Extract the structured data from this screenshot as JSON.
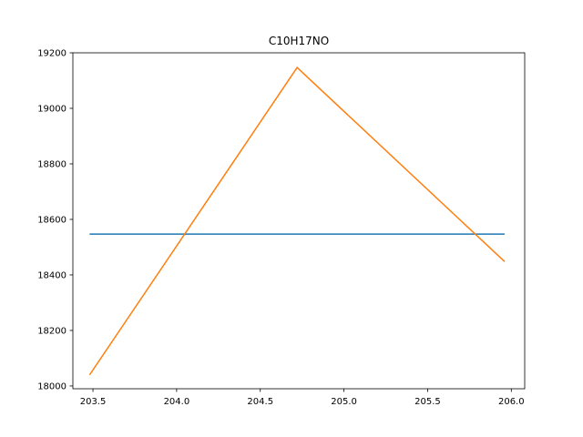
{
  "chart_data": {
    "type": "line",
    "title": "C10H17NO",
    "xlabel": "",
    "ylabel": "",
    "xlim": [
      203.38,
      206.08
    ],
    "ylim": [
      17990,
      19200
    ],
    "xticks": [
      203.5,
      204.0,
      204.5,
      205.0,
      205.5,
      206.0
    ],
    "xtick_labels": [
      "203.5",
      "204.0",
      "204.5",
      "205.0",
      "205.5",
      "206.0"
    ],
    "yticks": [
      18000,
      18200,
      18400,
      18600,
      18800,
      19000,
      19200
    ],
    "ytick_labels": [
      "18000",
      "18200",
      "18400",
      "18600",
      "18800",
      "19000",
      "19200"
    ],
    "grid": false,
    "series": [
      {
        "color": "#1f77b4",
        "x": [
          203.48,
          205.96
        ],
        "y": [
          18547,
          18547
        ]
      },
      {
        "color": "#ff7f0e",
        "x": [
          203.48,
          204.72,
          205.96
        ],
        "y": [
          18040,
          19147,
          18448
        ]
      }
    ]
  }
}
